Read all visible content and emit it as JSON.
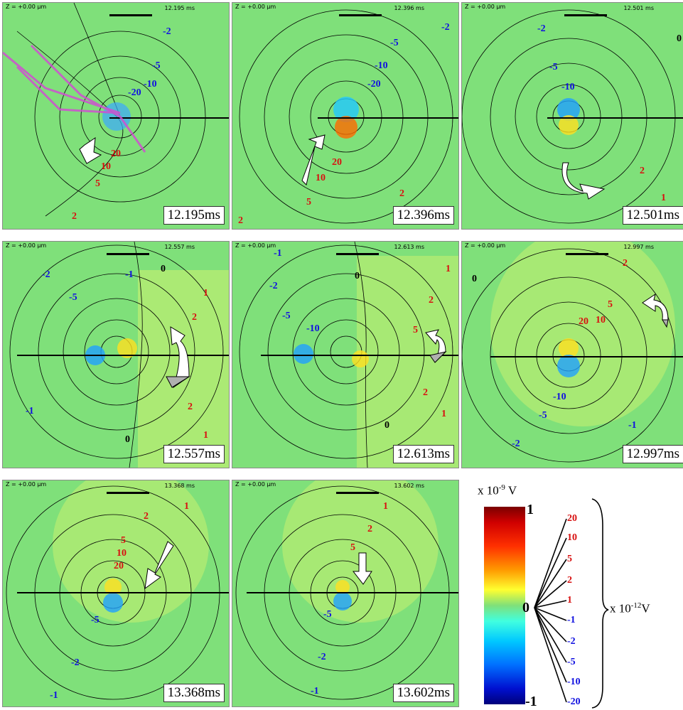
{
  "z_label": "Z = +0.00 µm",
  "panels": [
    {
      "time_label": "12.195ms",
      "stamp": "12.195 ms",
      "labels": [
        "-2",
        "-5",
        "-10",
        "-20",
        "20",
        "10",
        "5",
        "2"
      ],
      "arrow": "down-left",
      "trace": true
    },
    {
      "time_label": "12.396ms",
      "stamp": "12.396 ms",
      "labels": [
        "-2",
        "-5",
        "-10",
        "-20",
        "20",
        "10",
        "5",
        "2",
        "2"
      ],
      "arrow": "down-left",
      "trace": false
    },
    {
      "time_label": "12.501ms",
      "stamp": "12.501 ms",
      "labels": [
        "-2",
        "-5",
        "-10",
        "0",
        "2",
        "1"
      ],
      "arrow": "curve",
      "trace": false
    },
    {
      "time_label": "12.557ms",
      "stamp": "12.557 ms",
      "labels": [
        "-2",
        "-1",
        "0",
        "-5",
        "1",
        "2",
        "-1",
        "2",
        "1",
        "0"
      ],
      "arrow": "curve-up",
      "trace": false
    },
    {
      "time_label": "12.613ms",
      "stamp": "12.613 ms",
      "labels": [
        "-1",
        "0",
        "1",
        "-2",
        "2",
        "-5",
        "-10",
        "5",
        "2",
        "1",
        "0"
      ],
      "arrow": "curve-small",
      "trace": false
    },
    {
      "time_label": "12.997ms",
      "stamp": "12.997 ms",
      "labels": [
        "0",
        "2",
        "5",
        "20",
        "10",
        "-10",
        "-5",
        "-1",
        "-2"
      ],
      "arrow": "curve-small",
      "trace": false
    },
    {
      "time_label": "13.368ms",
      "stamp": "13.368 ms",
      "labels": [
        "1",
        "2",
        "5",
        "10",
        "20",
        "-5",
        "-2",
        "-1"
      ],
      "arrow": "down-left",
      "trace": false
    },
    {
      "time_label": "13.602ms",
      "stamp": "13.602 ms",
      "labels": [
        "1",
        "2",
        "5",
        "-5",
        "-2",
        "-1"
      ],
      "arrow": "down",
      "trace": false
    }
  ],
  "legend": {
    "colorbar_title_prefix": "x 10",
    "colorbar_title_exp": "-9",
    "colorbar_title_unit": " V",
    "colorbar_max": "1",
    "colorbar_zero": "0",
    "colorbar_min": "-1",
    "contour_values": [
      "20",
      "10",
      "5",
      "2",
      "1",
      "-1",
      "-2",
      "-5",
      "-10",
      "-20"
    ],
    "contour_unit_prefix": "x 10",
    "contour_unit_exp": "-12",
    "contour_unit_suffix": "V"
  }
}
